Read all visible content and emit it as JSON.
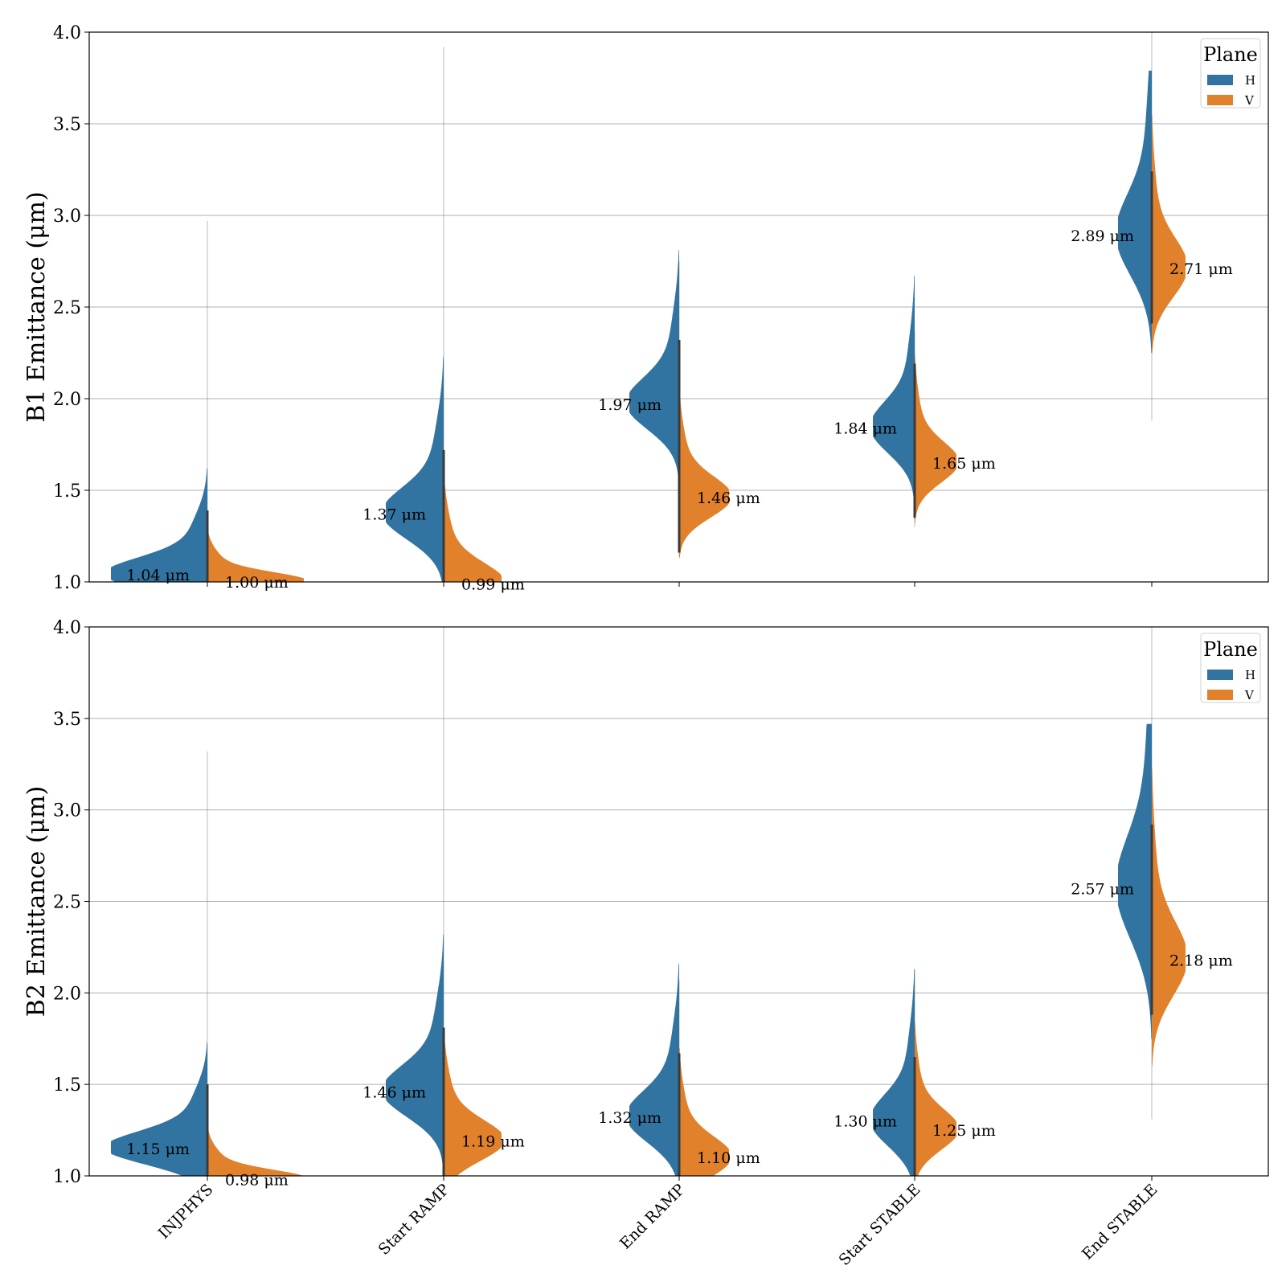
{
  "chart_data": [
    {
      "type": "violin",
      "ylabel": "B1 Emittance (μm)",
      "ylim": [
        1.0,
        4.0
      ],
      "yticks": [
        "1.0",
        "1.5",
        "2.0",
        "2.5",
        "3.0",
        "3.5",
        "4.0"
      ],
      "categories": [
        "INJPHYS",
        "Start RAMP",
        "End RAMP",
        "Start STABLE",
        "End STABLE"
      ],
      "show_category_labels": false,
      "grid": true,
      "legend": {
        "title": "Plane",
        "position": "top-right",
        "entries": [
          "H",
          "V"
        ]
      },
      "series": [
        {
          "name": "H",
          "color": "#3274a1",
          "medians": [
            1.04,
            1.37,
            1.97,
            1.84,
            2.89
          ],
          "median_labels": [
            "1.04 μm",
            "1.37 μm",
            "1.97 μm",
            "1.84 μm",
            "2.89 μm"
          ],
          "whisker_max": [
            2.97,
            3.92,
            2.75,
            2.37,
            4.0
          ],
          "whisker_min": [
            1.0,
            1.0,
            1.14,
            1.3,
            1.88
          ]
        },
        {
          "name": "V",
          "color": "#e1812c",
          "medians": [
            1.0,
            0.99,
            1.46,
            1.65,
            2.71
          ],
          "median_labels": [
            "1.00 μm",
            "0.99 μm",
            "1.46 μm",
            "1.65 μm",
            "2.71 μm"
          ]
        }
      ]
    },
    {
      "type": "violin",
      "ylabel": "B2 Emittance (μm)",
      "ylim": [
        1.0,
        4.0
      ],
      "yticks": [
        "1.0",
        "1.5",
        "2.0",
        "2.5",
        "3.0",
        "3.5",
        "4.0"
      ],
      "categories": [
        "INJPHYS",
        "Start RAMP",
        "End RAMP",
        "Start STABLE",
        "End STABLE"
      ],
      "show_category_labels": true,
      "grid": true,
      "legend": {
        "title": "Plane",
        "position": "top-right",
        "entries": [
          "H",
          "V"
        ]
      },
      "series": [
        {
          "name": "H",
          "color": "#3274a1",
          "medians": [
            1.15,
            1.46,
            1.32,
            1.3,
            2.57
          ],
          "median_labels": [
            "1.15 μm",
            "1.46 μm",
            "1.32 μm",
            "1.30 μm",
            "2.57 μm"
          ],
          "whisker_max": [
            3.32,
            4.0,
            2.07,
            2.13,
            4.0
          ],
          "whisker_min": [
            1.0,
            1.0,
            1.0,
            1.0,
            1.31
          ]
        },
        {
          "name": "V",
          "color": "#e1812c",
          "medians": [
            0.98,
            1.19,
            1.1,
            1.25,
            2.18
          ],
          "median_labels": [
            "0.98 μm",
            "1.19 μm",
            "1.10 μm",
            "1.25 μm",
            "2.18 μm"
          ]
        }
      ]
    }
  ]
}
